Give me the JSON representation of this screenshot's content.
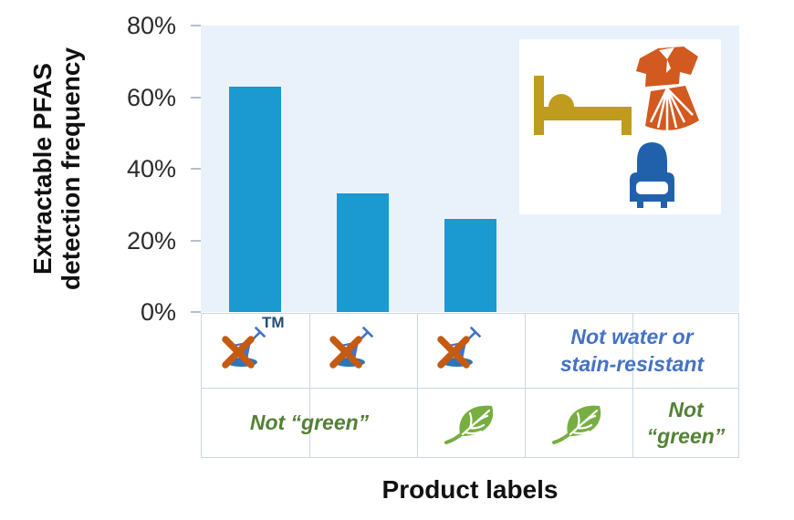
{
  "chart_data": {
    "type": "bar",
    "title": "",
    "xlabel": "Product labels",
    "ylabel": "Extractable PFAS\ndetection frequency",
    "ylim": [
      0,
      80
    ],
    "yticks": [
      {
        "value": 80,
        "label": "80%"
      },
      {
        "value": 60,
        "label": "60%"
      },
      {
        "value": 40,
        "label": "40%"
      },
      {
        "value": 20,
        "label": "20%"
      },
      {
        "value": 0,
        "label": "0%"
      }
    ],
    "categories": [
      "Crossed spilled-drink logo with TM, not “green”",
      "Crossed spilled-drink logo, not “green”",
      "Crossed spilled-drink logo, green-leaf label",
      "Not water or stain-resistant, green-leaf label",
      "Not water or stain-resistant, not “green”"
    ],
    "values": [
      63,
      33,
      26,
      0,
      0
    ],
    "bar_color": "#1a9ad0",
    "plot_bg": "#e9f2fb",
    "grid": "off",
    "legend": "none"
  },
  "label_grid": {
    "trademark_superscript": "TM",
    "not_water_or_stain_resistant": "Not water or\nstain-resistant",
    "not_green_wide": "Not “green”",
    "not_green_stacked": "Not\n“green”"
  },
  "icons": {
    "crossed_spilled_drink": {
      "glass_color": "#4472c4",
      "puddle_color": "#2e75b6",
      "cross_color": "#c55a11"
    },
    "leaf": {
      "color": "#77ae41"
    },
    "bed": {
      "color": "#bf9b1e"
    },
    "clothing": {
      "color": "#d2591f"
    },
    "armchair": {
      "color": "#2161ac"
    },
    "text_colors": {
      "blue_label": "#4472c4",
      "green_label": "#538135",
      "trademark": "#1f4e79"
    }
  }
}
